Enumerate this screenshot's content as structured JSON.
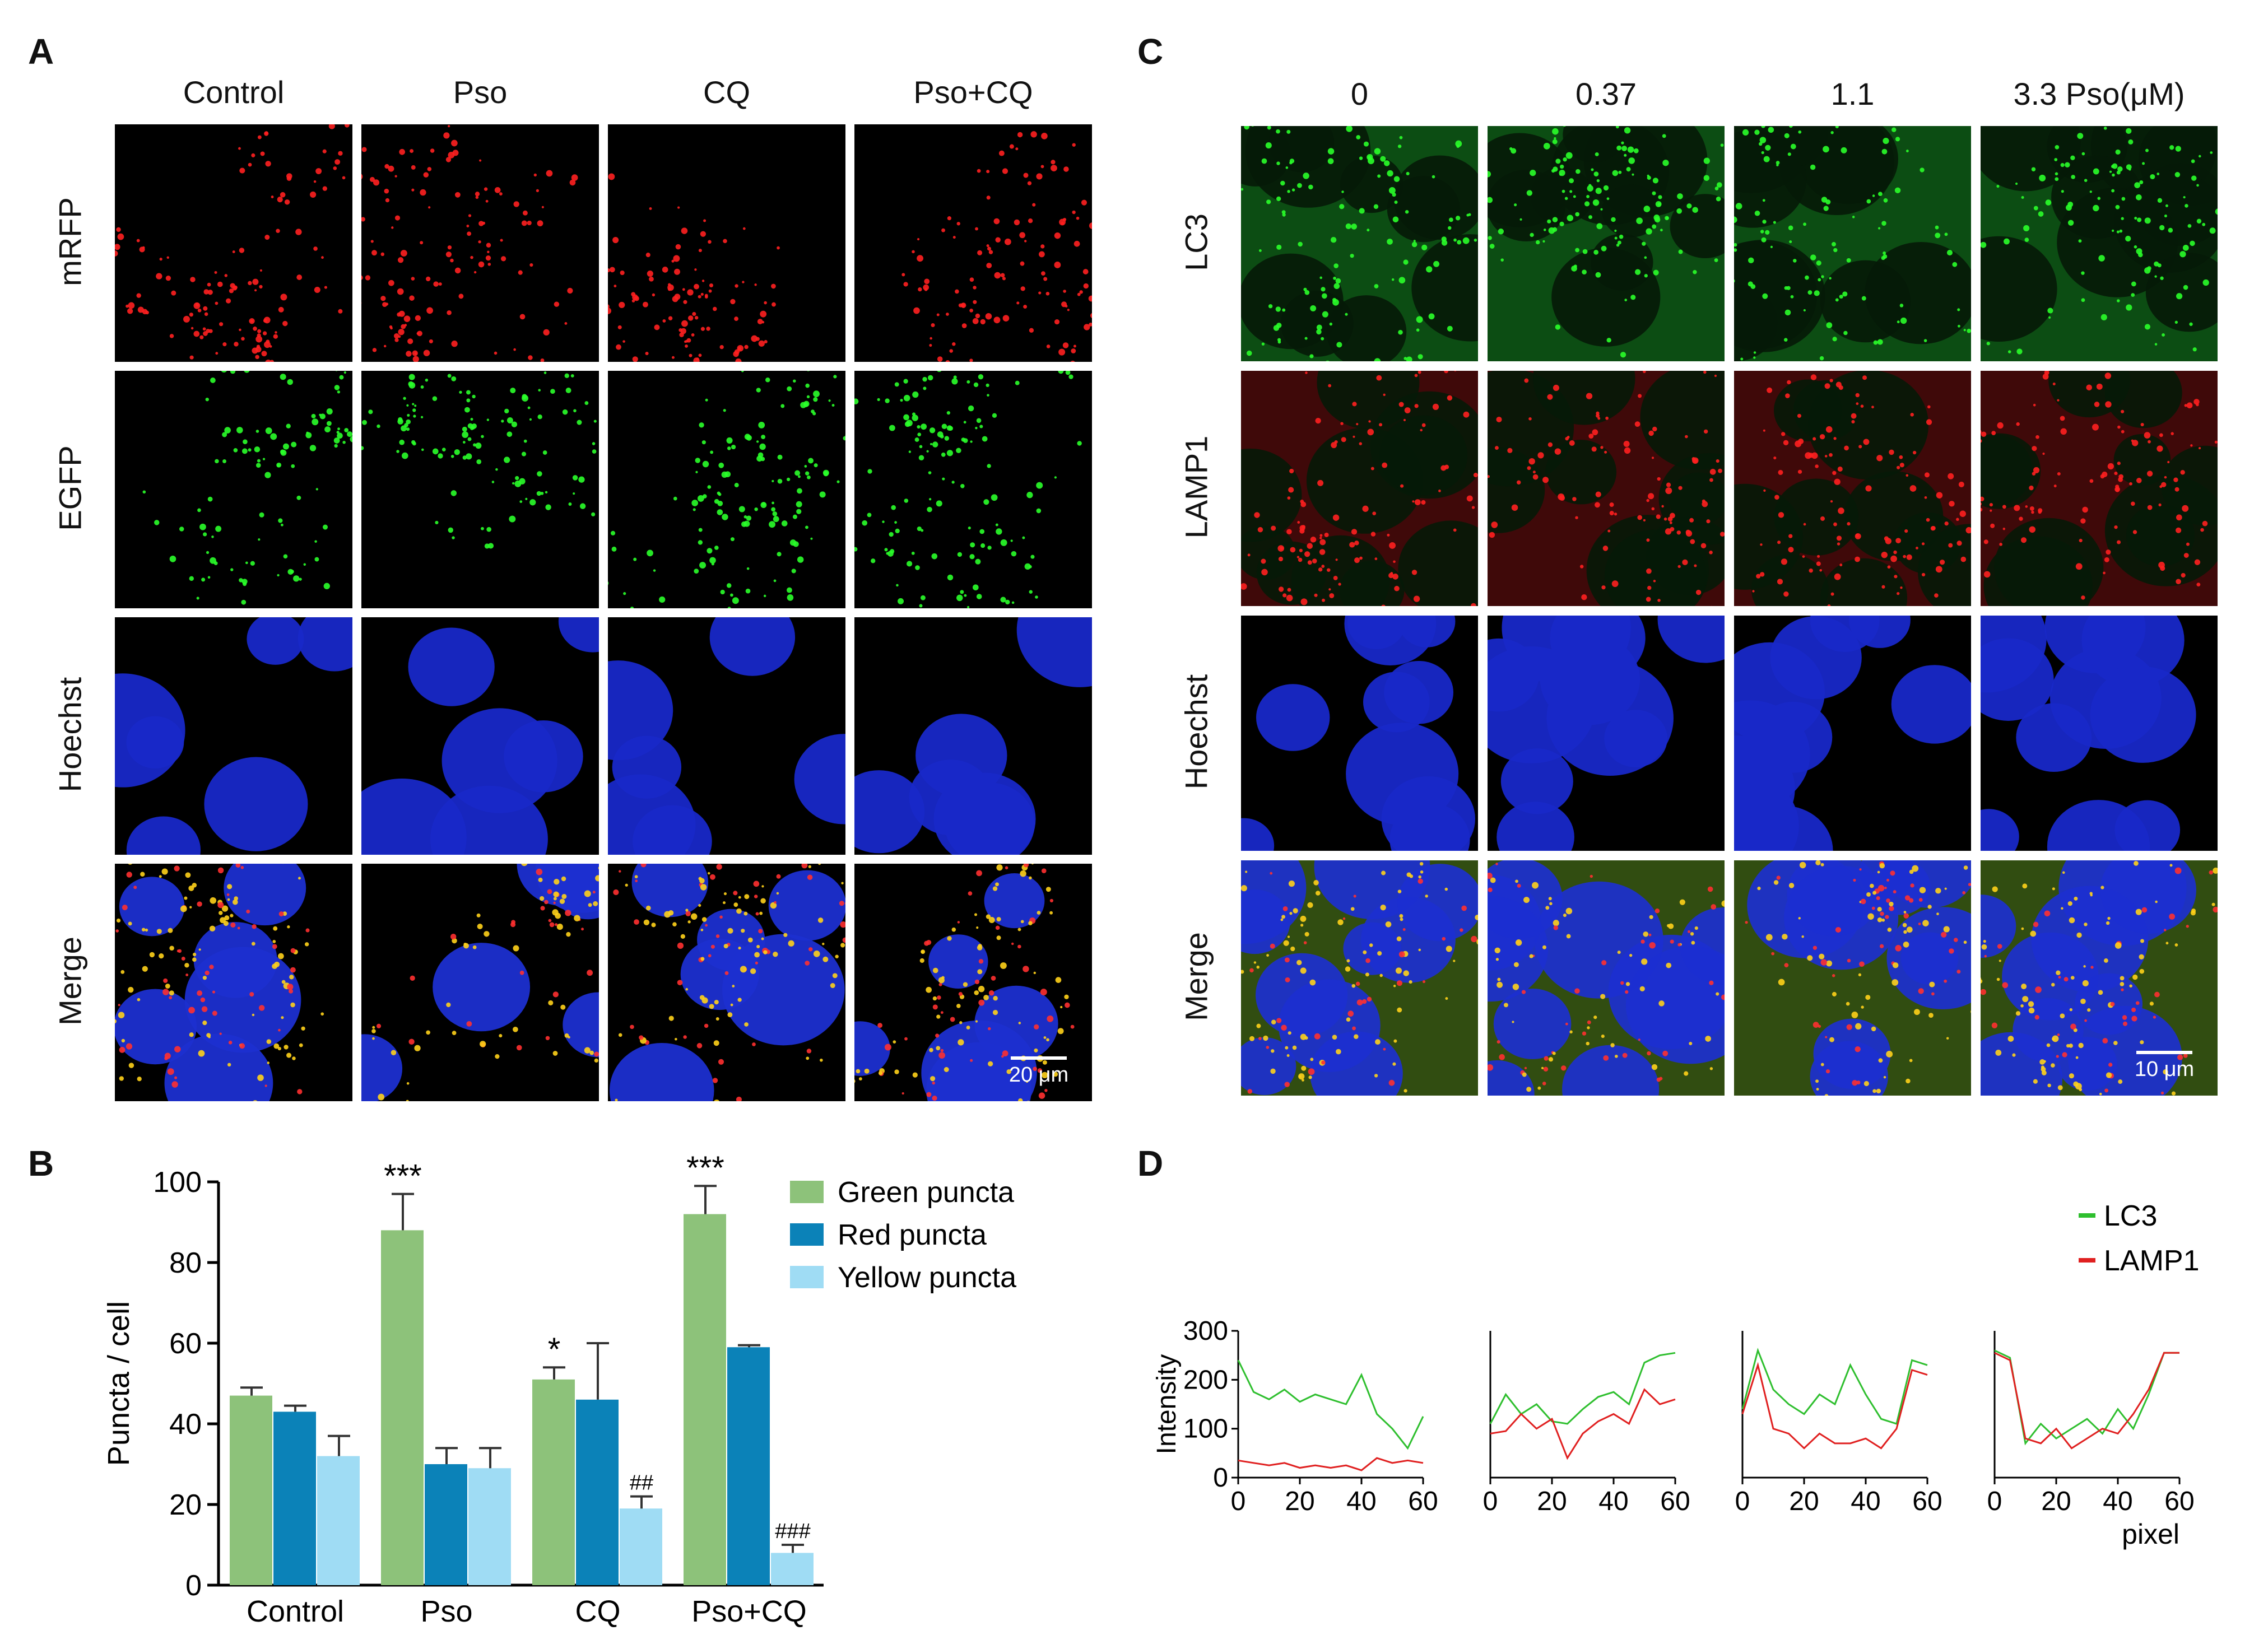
{
  "panel_a": {
    "letter": "A",
    "columns": [
      "Control",
      "Pso",
      "CQ",
      "Pso+CQ"
    ],
    "rows": [
      {
        "label": "mRFP",
        "channel": "red"
      },
      {
        "label": "EGFP",
        "channel": "green"
      },
      {
        "label": "Hoechst",
        "channel": "blue"
      },
      {
        "label": "Merge",
        "channel": "merge"
      }
    ],
    "scale_bar": "20 μm"
  },
  "panel_c": {
    "letter": "C",
    "columns": [
      "0",
      "0.37",
      "1.1",
      "3.3 Pso(μM)"
    ],
    "rows": [
      {
        "label": "LC3",
        "channel": "green"
      },
      {
        "label": "LAMP1",
        "channel": "red"
      },
      {
        "label": "Hoechst",
        "channel": "blue"
      },
      {
        "label": "Merge",
        "channel": "merge"
      }
    ],
    "scale_bar": "10 μm"
  },
  "panel_b": {
    "letter": "B"
  },
  "panel_d": {
    "letter": "D"
  },
  "colors": {
    "green_bar": "#8dc27a",
    "red_bar": "#0b82b8",
    "yellow_bar": "#9fdcf4",
    "lc3_line": "#2fbf2f",
    "lamp1_line": "#e02020"
  },
  "chart_data": [
    {
      "id": "B",
      "type": "bar",
      "title": "",
      "xlabel": "",
      "ylabel": "Puncta / cell",
      "ylim": [
        0,
        100
      ],
      "yticks": [
        "0",
        "20",
        "40",
        "60",
        "80",
        "100"
      ],
      "categories": [
        "Control",
        "Pso",
        "CQ",
        "Pso+CQ"
      ],
      "series": [
        {
          "name": "Green puncta",
          "values": [
            47,
            88,
            51,
            92
          ],
          "errors": [
            2,
            9,
            3,
            7
          ]
        },
        {
          "name": "Red puncta",
          "values": [
            43,
            30,
            46,
            59
          ],
          "errors": [
            1.5,
            4,
            14,
            0.5
          ]
        },
        {
          "name": "Yellow puncta",
          "values": [
            32,
            29,
            19,
            8
          ],
          "errors": [
            5,
            5,
            3,
            2
          ]
        }
      ],
      "annotations": [
        {
          "text": "***",
          "category": "Pso",
          "series": "Green puncta"
        },
        {
          "text": "*",
          "category": "CQ",
          "series": "Green puncta"
        },
        {
          "text": "***",
          "category": "Pso+CQ",
          "series": "Green puncta"
        },
        {
          "text": "##",
          "category": "CQ",
          "series": "Yellow puncta"
        },
        {
          "text": "###",
          "category": "Pso+CQ",
          "series": "Yellow puncta"
        }
      ],
      "legend": "top-right"
    },
    {
      "id": "D",
      "type": "line",
      "ylabel": "Intensity",
      "xlabel": "pixel",
      "ylim": [
        0,
        300
      ],
      "xlim": [
        0,
        60
      ],
      "yticks": [
        "0",
        "100",
        "200",
        "300"
      ],
      "xticks": [
        "0",
        "20",
        "40",
        "60"
      ],
      "legend": "top-right",
      "legend_entries": [
        "LC3",
        "LAMP1"
      ],
      "x": [
        0,
        5,
        10,
        15,
        20,
        25,
        30,
        35,
        40,
        45,
        50,
        55,
        60
      ],
      "subplots": [
        {
          "label": "0",
          "series": [
            {
              "name": "LC3",
              "values": [
                240,
                175,
                160,
                180,
                155,
                170,
                160,
                150,
                210,
                130,
                100,
                60,
                125
              ]
            },
            {
              "name": "LAMP1",
              "values": [
                35,
                30,
                25,
                30,
                20,
                25,
                20,
                25,
                15,
                40,
                30,
                35,
                30
              ]
            }
          ]
        },
        {
          "label": "0.37",
          "series": [
            {
              "name": "LC3",
              "values": [
                110,
                170,
                130,
                150,
                115,
                110,
                140,
                165,
                175,
                150,
                235,
                250,
                255
              ]
            },
            {
              "name": "LAMP1",
              "values": [
                90,
                95,
                130,
                100,
                120,
                40,
                90,
                115,
                130,
                110,
                180,
                150,
                160
              ]
            }
          ]
        },
        {
          "label": "1.1",
          "series": [
            {
              "name": "LC3",
              "values": [
                140,
                260,
                180,
                150,
                130,
                170,
                150,
                230,
                170,
                120,
                110,
                240,
                230
              ]
            },
            {
              "name": "LAMP1",
              "values": [
                130,
                230,
                100,
                90,
                60,
                90,
                70,
                70,
                80,
                60,
                100,
                220,
                210
              ]
            }
          ]
        },
        {
          "label": "3.3",
          "series": [
            {
              "name": "LC3",
              "values": [
                260,
                245,
                70,
                110,
                80,
                100,
                120,
                90,
                140,
                100,
                170,
                255,
                255
              ]
            },
            {
              "name": "LAMP1",
              "values": [
                255,
                240,
                80,
                70,
                100,
                60,
                80,
                100,
                90,
                130,
                180,
                255,
                255
              ]
            }
          ]
        }
      ]
    }
  ]
}
